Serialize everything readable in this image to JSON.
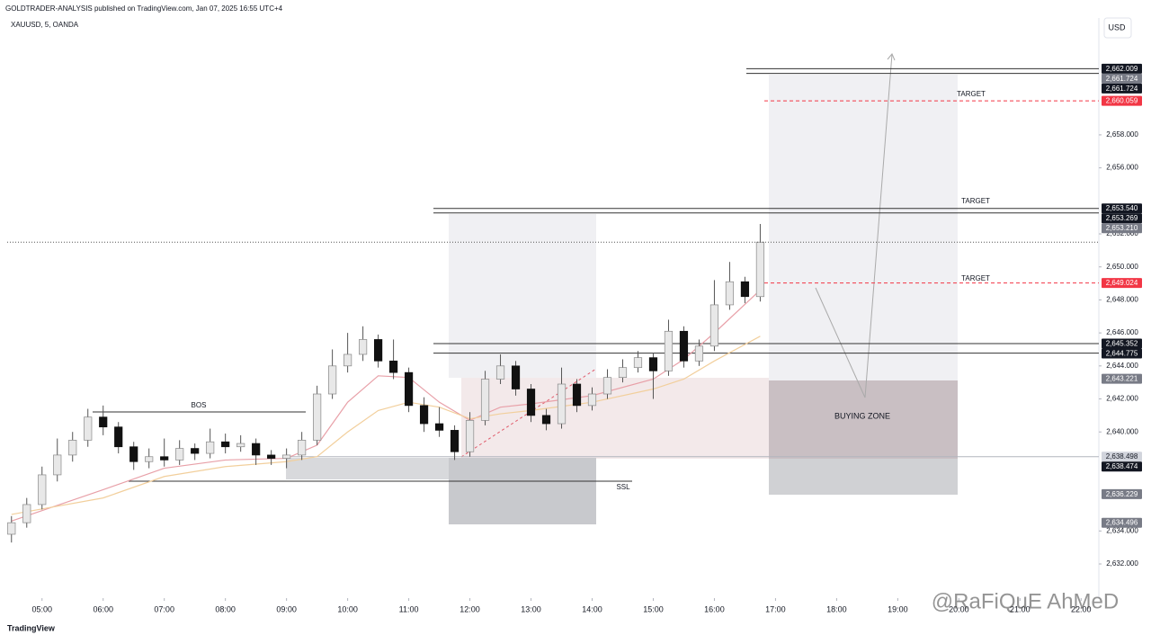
{
  "header": {
    "publisher": "GOLDTRADER-ANALYSIS published on TradingView.com, Jan 07, 2025 16:55 UTC+4",
    "symbol": "XAUUSD, 5, OANDA",
    "currency": "USD"
  },
  "footer": {
    "brand": "TradingView",
    "watermark": "@RaFiQuE AhMeD"
  },
  "chart_data": {
    "type": "candlestick",
    "x": [
      4.5,
      4.75,
      5,
      5.25,
      5.5,
      5.75,
      6,
      6.25,
      6.5,
      6.75,
      7,
      7.25,
      7.5,
      7.75,
      8,
      8.25,
      8.5,
      8.75,
      9,
      9.25,
      9.5,
      9.75,
      10,
      10.25,
      10.5,
      10.75,
      11,
      11.25,
      11.5,
      11.75,
      12,
      12.25,
      12.5,
      12.75,
      13,
      13.25,
      13.5,
      13.75,
      14,
      14.25,
      14.5,
      14.75,
      15,
      15.25,
      15.5,
      15.75,
      16,
      16.25,
      16.5,
      16.75
    ],
    "open": [
      2633.8,
      2634.5,
      2635.6,
      2637.4,
      2638.6,
      2639.5,
      2640.9,
      2640.3,
      2639.1,
      2638.2,
      2638.5,
      2638.3,
      2639.0,
      2638.7,
      2639.4,
      2639.1,
      2639.3,
      2638.6,
      2638.4,
      2638.6,
      2639.5,
      2642.3,
      2644.0,
      2644.7,
      2645.6,
      2644.3,
      2643.6,
      2641.6,
      2640.5,
      2640.1,
      2638.8,
      2640.7,
      2643.2,
      2644.0,
      2642.6,
      2641.0,
      2640.5,
      2642.9,
      2641.6,
      2642.3,
      2643.3,
      2643.9,
      2644.5,
      2643.7,
      2646.1,
      2644.3,
      2645.2,
      2647.7,
      2649.1,
      2648.2
    ],
    "high": [
      2634.9,
      2636.0,
      2637.9,
      2639.6,
      2640.0,
      2641.4,
      2641.6,
      2640.6,
      2639.4,
      2639.0,
      2639.6,
      2639.5,
      2639.3,
      2640.2,
      2639.9,
      2639.8,
      2639.6,
      2638.9,
      2639.0,
      2640.0,
      2642.8,
      2645.0,
      2646.0,
      2646.4,
      2645.9,
      2645.6,
      2643.9,
      2642.1,
      2641.5,
      2640.4,
      2641.2,
      2643.7,
      2644.7,
      2644.3,
      2642.9,
      2641.4,
      2643.9,
      2643.2,
      2642.7,
      2643.8,
      2644.4,
      2644.9,
      2644.8,
      2646.8,
      2646.4,
      2645.6,
      2649.2,
      2650.3,
      2649.4,
      2652.6
    ],
    "low": [
      2633.3,
      2634.2,
      2635.3,
      2637.0,
      2638.2,
      2639.1,
      2639.8,
      2638.7,
      2637.7,
      2637.8,
      2637.9,
      2638.0,
      2638.3,
      2638.4,
      2638.7,
      2638.8,
      2638.0,
      2638.0,
      2637.8,
      2638.3,
      2639.2,
      2642.0,
      2643.6,
      2644.3,
      2643.9,
      2643.2,
      2641.2,
      2640.0,
      2639.7,
      2638.3,
      2638.5,
      2640.4,
      2642.9,
      2642.2,
      2640.6,
      2640.1,
      2640.2,
      2641.2,
      2641.3,
      2642.0,
      2643.0,
      2643.6,
      2642.0,
      2643.4,
      2643.9,
      2644.0,
      2644.9,
      2647.4,
      2647.8,
      2647.9
    ],
    "close": [
      2634.5,
      2635.6,
      2637.4,
      2638.6,
      2639.5,
      2640.9,
      2640.3,
      2639.1,
      2638.2,
      2638.5,
      2638.3,
      2639.0,
      2638.7,
      2639.4,
      2639.1,
      2639.3,
      2638.6,
      2638.4,
      2638.6,
      2639.5,
      2642.3,
      2644.0,
      2644.7,
      2645.6,
      2644.3,
      2643.6,
      2641.6,
      2640.5,
      2640.1,
      2638.8,
      2640.7,
      2643.2,
      2644.0,
      2642.6,
      2641.0,
      2640.5,
      2642.9,
      2641.6,
      2642.3,
      2643.3,
      2643.9,
      2644.5,
      2643.7,
      2646.1,
      2644.3,
      2645.2,
      2647.7,
      2649.1,
      2648.2,
      2651.5
    ],
    "up_color": "#e8e8e8",
    "down_color": "#111111",
    "ma_lines": [
      {
        "color": "#e8a0a8",
        "x": [
          4.5,
          6,
          7,
          8,
          9,
          9.5,
          10,
          10.5,
          11,
          11.5,
          12,
          12.5,
          13,
          14,
          15,
          15.5,
          16,
          16.75
        ],
        "values": [
          2634.6,
          2636.5,
          2637.8,
          2638.3,
          2638.4,
          2639.2,
          2641.8,
          2643.4,
          2643.3,
          2641.8,
          2640.7,
          2641.5,
          2641.7,
          2642.2,
          2643.2,
          2644.4,
          2646,
          2648.6
        ]
      },
      {
        "color": "#f2cf9c",
        "x": [
          4.5,
          6,
          7,
          8,
          9,
          9.5,
          10,
          10.5,
          11,
          11.5,
          12,
          12.5,
          13,
          14,
          15,
          15.5,
          16,
          16.75
        ],
        "values": [
          2635,
          2636,
          2637.3,
          2637.9,
          2638.2,
          2638.5,
          2640,
          2641.3,
          2641.8,
          2641.5,
          2640.8,
          2641.1,
          2641.3,
          2641.8,
          2642.6,
          2643.2,
          2644.3,
          2645.8
        ]
      }
    ],
    "xlim": [
      4.43,
      22.29
    ],
    "ylim": [
      2629.93,
      2664.1
    ],
    "xticks": [
      {
        "value": 5,
        "label": "05:00"
      },
      {
        "value": 6,
        "label": "06:00"
      },
      {
        "value": 7,
        "label": "07:00"
      },
      {
        "value": 8,
        "label": "08:00"
      },
      {
        "value": 9,
        "label": "09:00"
      },
      {
        "value": 10,
        "label": "10:00"
      },
      {
        "value": 11,
        "label": "11:00"
      },
      {
        "value": 12,
        "label": "12:00"
      },
      {
        "value": 13,
        "label": "13:00"
      },
      {
        "value": 14,
        "label": "14:00"
      },
      {
        "value": 15,
        "label": "15:00"
      },
      {
        "value": 16,
        "label": "16:00"
      },
      {
        "value": 17,
        "label": "17:00"
      },
      {
        "value": 18,
        "label": "18:00"
      },
      {
        "value": 19,
        "label": "19:00"
      },
      {
        "value": 20,
        "label": "20:00"
      },
      {
        "value": 21,
        "label": "21:00"
      },
      {
        "value": 22,
        "label": "22:00"
      }
    ],
    "yticks": [
      {
        "value": 2632,
        "label": "2,632.000"
      },
      {
        "value": 2634,
        "label": "2,634.000"
      },
      {
        "value": 2640,
        "label": "2,640.000"
      },
      {
        "value": 2642,
        "label": "2,642.000"
      },
      {
        "value": 2644,
        "label": "2,644.000"
      },
      {
        "value": 2646,
        "label": "2,646.000"
      },
      {
        "value": 2648,
        "label": "2,648.000"
      },
      {
        "value": 2650,
        "label": "2,650.000"
      },
      {
        "value": 2652,
        "label": "2,652.000"
      },
      {
        "value": 2656,
        "label": "2,656.000"
      },
      {
        "value": 2658,
        "label": "2,658.000"
      }
    ],
    "price_labels": [
      {
        "value": 2662.009,
        "label": "2,662.009",
        "color": "#131722"
      },
      {
        "value": 2661.724,
        "label": "2,661.724",
        "color": "#787b86"
      },
      {
        "value": 2661.724,
        "label": "2,661.724",
        "color": "#131722"
      },
      {
        "value": 2660.059,
        "label": "2,660.059",
        "color": "#f23645"
      },
      {
        "value": 2653.54,
        "label": "2,653.540",
        "color": "#131722"
      },
      {
        "value": 2653.269,
        "label": "2,653.269",
        "color": "#131722"
      },
      {
        "value": 2653.21,
        "label": "2,653.210",
        "color": "#787b86"
      },
      {
        "value": 2649.024,
        "label": "2,649.024",
        "color": "#f23645"
      },
      {
        "value": 2645.352,
        "label": "2,645.352",
        "color": "#131722"
      },
      {
        "value": 2644.775,
        "label": "2,644.775",
        "color": "#131722"
      },
      {
        "value": 2643.221,
        "label": "2,643.221",
        "color": "#787b86"
      },
      {
        "value": 2638.498,
        "label": "2,638.498",
        "color": "#d1d4dc"
      },
      {
        "value": 2638.474,
        "label": "2,638.474",
        "color": "#131722"
      },
      {
        "value": 2636.229,
        "label": "2,636.229",
        "color": "#787b86"
      },
      {
        "value": 2634.496,
        "label": "2,634.496",
        "color": "#787b86"
      }
    ],
    "annotations": {
      "bos": "BOS",
      "ssl": "SSL",
      "target_1": "TARGET",
      "target_2": "TARGET",
      "target_3": "TARGET",
      "buying_zone": "BUYING ZONE"
    }
  }
}
